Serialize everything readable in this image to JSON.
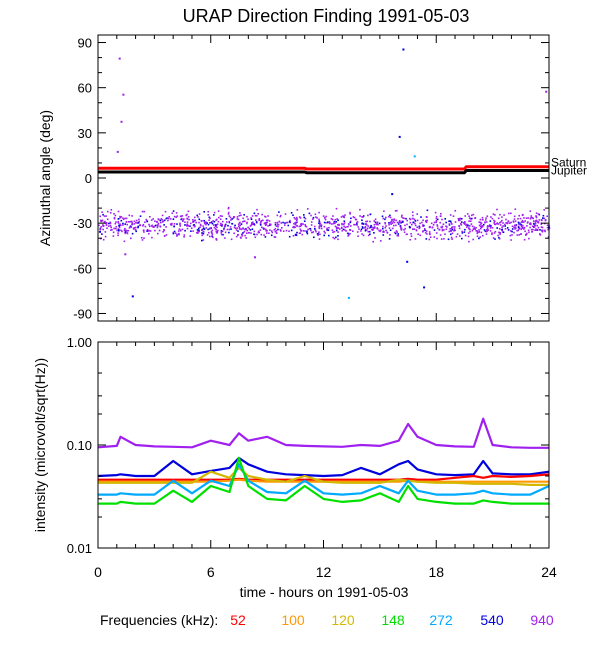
{
  "title": "URAP Direction Finding  1991-05-03",
  "xaxis": {
    "label": "time - hours on 1991-05-03",
    "range": [
      0,
      24
    ],
    "ticks": [
      "0",
      "6",
      "12",
      "18",
      "24"
    ],
    "tick_values": [
      0,
      6,
      12,
      18,
      24
    ]
  },
  "legend": {
    "prefix": "Frequencies (kHz):",
    "items": [
      {
        "label": "52",
        "color": "#ff0000"
      },
      {
        "label": "100",
        "color": "#ff9900"
      },
      {
        "label": "120",
        "color": "#d4b800"
      },
      {
        "label": "148",
        "color": "#00e000"
      },
      {
        "label": "272",
        "color": "#00aaff"
      },
      {
        "label": "540",
        "color": "#0000dd"
      },
      {
        "label": "940",
        "color": "#a020f0"
      }
    ]
  },
  "chart_data": [
    {
      "type": "scatter",
      "ylabel": "Azimuthal angle (deg)",
      "ylim": [
        -95,
        95
      ],
      "yticks": [
        "90",
        "60",
        "30",
        "0",
        "-30",
        "-60",
        "-90"
      ],
      "ytick_values": [
        90,
        60,
        30,
        0,
        -30,
        -60,
        -90
      ],
      "reference_lines": [
        {
          "name": "Saturn",
          "color": "#ff0000",
          "points": [
            [
              0,
              6.5
            ],
            [
              11,
              6.5
            ],
            [
              11.1,
              6.0
            ],
            [
              19.5,
              6.0
            ],
            [
              19.6,
              7.5
            ],
            [
              24,
              7.5
            ]
          ]
        },
        {
          "name": "Jupiter",
          "color": "#000000",
          "points": [
            [
              0,
              4.0
            ],
            [
              11,
              4.0
            ],
            [
              11.1,
              3.5
            ],
            [
              19.5,
              3.5
            ],
            [
              19.6,
              5.0
            ],
            [
              24,
              5.0
            ]
          ]
        }
      ],
      "scatter_band": {
        "series": "940",
        "center": -31,
        "spread": 8,
        "x_range": [
          0,
          24
        ]
      },
      "outliers": [
        {
          "series": "940",
          "x": 1.1,
          "y": 80
        },
        {
          "series": "940",
          "x": 1.3,
          "y": 56
        },
        {
          "series": "940",
          "x": 1.2,
          "y": 38
        },
        {
          "series": "940",
          "x": 1.0,
          "y": 18
        },
        {
          "series": "940",
          "x": 1.4,
          "y": -50
        },
        {
          "series": "540",
          "x": 1.8,
          "y": -78
        },
        {
          "series": "540",
          "x": 16.2,
          "y": 86
        },
        {
          "series": "540",
          "x": 16.0,
          "y": 28
        },
        {
          "series": "272",
          "x": 16.8,
          "y": 15
        },
        {
          "series": "272",
          "x": 13.3,
          "y": -79
        },
        {
          "series": "540",
          "x": 16.4,
          "y": -55
        },
        {
          "series": "540",
          "x": 17.3,
          "y": -72
        },
        {
          "series": "940",
          "x": 23.8,
          "y": 58
        },
        {
          "series": "540",
          "x": 15.6,
          "y": -10
        },
        {
          "series": "940",
          "x": 8.3,
          "y": -52
        }
      ]
    },
    {
      "type": "line",
      "ylabel": "intensity (microvolt/sqrt(Hz))",
      "yscale": "log",
      "ylim": [
        0.01,
        1.0
      ],
      "yticks": [
        "1.00",
        "0.10",
        "0.01"
      ],
      "ytick_values": [
        1.0,
        0.1,
        0.01
      ],
      "x": [
        0,
        1,
        1.2,
        2,
        3,
        4,
        5,
        6,
        7,
        7.5,
        8,
        9,
        10,
        11,
        12,
        13,
        14,
        15,
        16,
        16.5,
        17,
        18,
        19,
        20,
        20.5,
        21,
        22,
        23,
        24
      ],
      "series": [
        {
          "name": "940",
          "values": [
            0.095,
            0.098,
            0.12,
            0.1,
            0.097,
            0.096,
            0.095,
            0.11,
            0.1,
            0.13,
            0.11,
            0.12,
            0.1,
            0.098,
            0.097,
            0.096,
            0.1,
            0.098,
            0.11,
            0.16,
            0.12,
            0.1,
            0.097,
            0.096,
            0.18,
            0.1,
            0.095,
            0.094,
            0.094
          ]
        },
        {
          "name": "540",
          "values": [
            0.05,
            0.051,
            0.052,
            0.05,
            0.05,
            0.07,
            0.052,
            0.056,
            0.06,
            0.075,
            0.065,
            0.055,
            0.052,
            0.051,
            0.05,
            0.051,
            0.06,
            0.052,
            0.065,
            0.07,
            0.058,
            0.052,
            0.051,
            0.052,
            0.07,
            0.053,
            0.052,
            0.052,
            0.055
          ]
        },
        {
          "name": "52",
          "values": [
            0.046,
            0.046,
            0.046,
            0.046,
            0.046,
            0.046,
            0.046,
            0.046,
            0.046,
            0.047,
            0.046,
            0.046,
            0.046,
            0.046,
            0.046,
            0.046,
            0.046,
            0.046,
            0.046,
            0.047,
            0.046,
            0.046,
            0.048,
            0.05,
            0.048,
            0.05,
            0.049,
            0.05,
            0.052
          ]
        },
        {
          "name": "100",
          "values": [
            0.044,
            0.044,
            0.044,
            0.044,
            0.044,
            0.044,
            0.044,
            0.044,
            0.045,
            0.046,
            0.045,
            0.044,
            0.044,
            0.044,
            0.044,
            0.044,
            0.044,
            0.044,
            0.044,
            0.045,
            0.044,
            0.044,
            0.044,
            0.044,
            0.044,
            0.044,
            0.044,
            0.044,
            0.044
          ]
        },
        {
          "name": "120",
          "values": [
            0.043,
            0.043,
            0.043,
            0.043,
            0.043,
            0.043,
            0.043,
            0.055,
            0.048,
            0.06,
            0.05,
            0.046,
            0.044,
            0.05,
            0.044,
            0.043,
            0.043,
            0.043,
            0.046,
            0.045,
            0.044,
            0.043,
            0.043,
            0.042,
            0.042,
            0.042,
            0.042,
            0.041,
            0.041
          ]
        },
        {
          "name": "272",
          "values": [
            0.033,
            0.033,
            0.034,
            0.033,
            0.033,
            0.045,
            0.034,
            0.045,
            0.04,
            0.065,
            0.045,
            0.035,
            0.034,
            0.045,
            0.034,
            0.033,
            0.034,
            0.04,
            0.034,
            0.045,
            0.036,
            0.033,
            0.033,
            0.034,
            0.036,
            0.034,
            0.033,
            0.033,
            0.04
          ]
        },
        {
          "name": "148",
          "values": [
            0.027,
            0.027,
            0.028,
            0.027,
            0.027,
            0.036,
            0.028,
            0.04,
            0.035,
            0.075,
            0.04,
            0.03,
            0.029,
            0.04,
            0.03,
            0.028,
            0.029,
            0.034,
            0.028,
            0.04,
            0.03,
            0.028,
            0.027,
            0.027,
            0.029,
            0.028,
            0.027,
            0.027,
            0.027
          ]
        }
      ]
    }
  ]
}
